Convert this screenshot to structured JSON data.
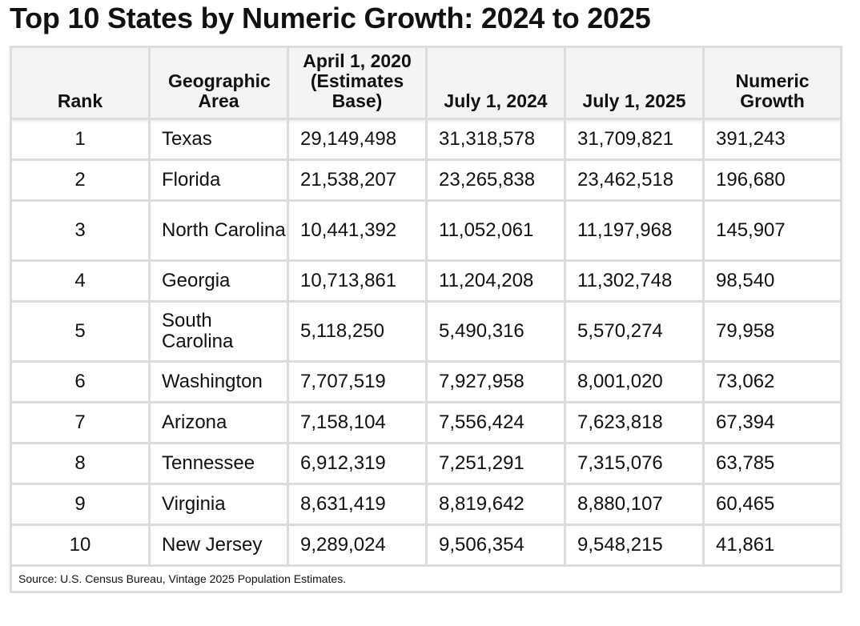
{
  "title": "Top 10 States by Numeric Growth: 2024 to 2025",
  "table": {
    "headers": {
      "rank": "Rank",
      "area": "Geographic Area",
      "base": "April 1, 2020 (Estimates Base)",
      "jul2024": "July 1, 2024",
      "jul2025": "July 1, 2025",
      "growth": "Numeric Growth"
    },
    "rows": [
      {
        "rank": "1",
        "area": "Texas",
        "base": "29,149,498",
        "jul2024": "31,318,578",
        "jul2025": "31,709,821",
        "growth": "391,243"
      },
      {
        "rank": "2",
        "area": "Florida",
        "base": "21,538,207",
        "jul2024": "23,265,838",
        "jul2025": "23,462,518",
        "growth": "196,680"
      },
      {
        "rank": "3",
        "area": "North Carolina",
        "base": "10,441,392",
        "jul2024": "11,052,061",
        "jul2025": "11,197,968",
        "growth": "145,907"
      },
      {
        "rank": "4",
        "area": "Georgia",
        "base": "10,713,861",
        "jul2024": "11,204,208",
        "jul2025": "11,302,748",
        "growth": "98,540"
      },
      {
        "rank": "5",
        "area": "South Carolina",
        "base": "5,118,250",
        "jul2024": "5,490,316",
        "jul2025": "5,570,274",
        "growth": "79,958"
      },
      {
        "rank": "6",
        "area": "Washington",
        "base": "7,707,519",
        "jul2024": "7,927,958",
        "jul2025": "8,001,020",
        "growth": "73,062"
      },
      {
        "rank": "7",
        "area": "Arizona",
        "base": "7,158,104",
        "jul2024": "7,556,424",
        "jul2025": "7,623,818",
        "growth": "67,394"
      },
      {
        "rank": "8",
        "area": "Tennessee",
        "base": "6,912,319",
        "jul2024": "7,251,291",
        "jul2025": "7,315,076",
        "growth": "63,785"
      },
      {
        "rank": "9",
        "area": "Virginia",
        "base": "8,631,419",
        "jul2024": "8,819,642",
        "jul2025": "8,880,107",
        "growth": "60,465"
      },
      {
        "rank": "10",
        "area": "New Jersey",
        "base": "9,289,024",
        "jul2024": "9,506,354",
        "jul2025": "9,548,215",
        "growth": "41,861"
      }
    ],
    "source": "Source: U.S. Census Bureau, Vintage 2025 Population Estimates."
  }
}
